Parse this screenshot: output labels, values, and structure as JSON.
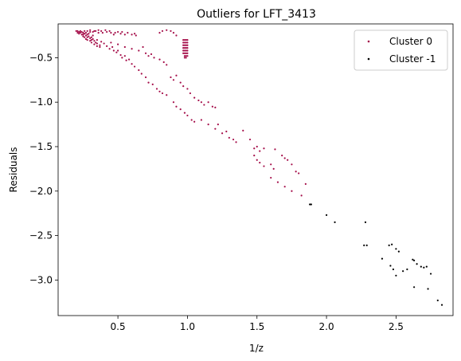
{
  "chart_data": {
    "type": "scatter",
    "title": "Outliers for LFT_3413",
    "xlabel": "1/z",
    "ylabel": "Residuals",
    "xlim": [
      0.07,
      2.91
    ],
    "ylim": [
      -3.4,
      -0.12
    ],
    "xticks": [
      0.5,
      1.0,
      1.5,
      2.0,
      2.5
    ],
    "xtick_labels": [
      "0.5",
      "1.0",
      "1.5",
      "2.0",
      "2.5"
    ],
    "yticks": [
      -0.5,
      -1.0,
      -1.5,
      -2.0,
      -2.5,
      -3.0
    ],
    "ytick_labels": [
      "−0.5",
      "−1.0",
      "−1.5",
      "−2.0",
      "−2.5",
      "−3.0"
    ],
    "grid": false,
    "legend": "top-right",
    "series": [
      {
        "name": "Cluster 0",
        "color": "#a50f4a",
        "points": [
          [
            0.2,
            -0.2
          ],
          [
            0.21,
            -0.2
          ],
          [
            0.22,
            -0.21
          ],
          [
            0.23,
            -0.2
          ],
          [
            0.23,
            -0.22
          ],
          [
            0.24,
            -0.21
          ],
          [
            0.25,
            -0.22
          ],
          [
            0.25,
            -0.24
          ],
          [
            0.26,
            -0.23
          ],
          [
            0.26,
            -0.2
          ],
          [
            0.27,
            -0.25
          ],
          [
            0.27,
            -0.22
          ],
          [
            0.28,
            -0.24
          ],
          [
            0.28,
            -0.27
          ],
          [
            0.29,
            -0.26
          ],
          [
            0.29,
            -0.23
          ],
          [
            0.3,
            -0.28
          ],
          [
            0.3,
            -0.21
          ],
          [
            0.31,
            -0.27
          ],
          [
            0.31,
            -0.3
          ],
          [
            0.32,
            -0.29
          ],
          [
            0.32,
            -0.25
          ],
          [
            0.33,
            -0.31
          ],
          [
            0.33,
            -0.2
          ],
          [
            0.34,
            -0.33
          ],
          [
            0.35,
            -0.3
          ],
          [
            0.35,
            -0.34
          ],
          [
            0.36,
            -0.22
          ],
          [
            0.37,
            -0.36
          ],
          [
            0.38,
            -0.32
          ],
          [
            0.21,
            -0.22
          ],
          [
            0.22,
            -0.23
          ],
          [
            0.24,
            -0.24
          ],
          [
            0.25,
            -0.26
          ],
          [
            0.26,
            -0.27
          ],
          [
            0.27,
            -0.29
          ],
          [
            0.28,
            -0.3
          ],
          [
            0.3,
            -0.31
          ],
          [
            0.31,
            -0.33
          ],
          [
            0.33,
            -0.35
          ],
          [
            0.35,
            -0.37
          ],
          [
            0.37,
            -0.38
          ],
          [
            0.28,
            -0.2
          ],
          [
            0.3,
            -0.19
          ],
          [
            0.32,
            -0.21
          ],
          [
            0.34,
            -0.2
          ],
          [
            0.36,
            -0.19
          ],
          [
            0.38,
            -0.2
          ],
          [
            0.39,
            -0.22
          ],
          [
            0.41,
            -0.19
          ],
          [
            0.42,
            -0.21
          ],
          [
            0.44,
            -0.2
          ],
          [
            0.45,
            -0.22
          ],
          [
            0.47,
            -0.24
          ],
          [
            0.48,
            -0.22
          ],
          [
            0.5,
            -0.21
          ],
          [
            0.52,
            -0.23
          ],
          [
            0.53,
            -0.21
          ],
          [
            0.55,
            -0.24
          ],
          [
            0.57,
            -0.22
          ],
          [
            0.6,
            -0.24
          ],
          [
            0.62,
            -0.23
          ],
          [
            0.63,
            -0.25
          ],
          [
            0.4,
            -0.34
          ],
          [
            0.42,
            -0.37
          ],
          [
            0.44,
            -0.4
          ],
          [
            0.46,
            -0.38
          ],
          [
            0.47,
            -0.42
          ],
          [
            0.49,
            -0.44
          ],
          [
            0.5,
            -0.42
          ],
          [
            0.52,
            -0.47
          ],
          [
            0.53,
            -0.5
          ],
          [
            0.55,
            -0.48
          ],
          [
            0.56,
            -0.53
          ],
          [
            0.58,
            -0.52
          ],
          [
            0.6,
            -0.57
          ],
          [
            0.62,
            -0.6
          ],
          [
            0.65,
            -0.64
          ],
          [
            0.67,
            -0.68
          ],
          [
            0.45,
            -0.33
          ],
          [
            0.5,
            -0.35
          ],
          [
            0.55,
            -0.38
          ],
          [
            0.6,
            -0.4
          ],
          [
            0.65,
            -0.42
          ],
          [
            0.68,
            -0.38
          ],
          [
            0.7,
            -0.45
          ],
          [
            0.72,
            -0.48
          ],
          [
            0.74,
            -0.46
          ],
          [
            0.76,
            -0.5
          ],
          [
            0.8,
            -0.52
          ],
          [
            0.83,
            -0.55
          ],
          [
            0.85,
            -0.58
          ],
          [
            0.7,
            -0.72
          ],
          [
            0.72,
            -0.78
          ],
          [
            0.75,
            -0.8
          ],
          [
            0.78,
            -0.85
          ],
          [
            0.8,
            -0.88
          ],
          [
            0.82,
            -0.9
          ],
          [
            0.85,
            -0.92
          ],
          [
            0.88,
            -0.72
          ],
          [
            0.9,
            -0.75
          ],
          [
            0.92,
            -0.7
          ],
          [
            0.95,
            -0.78
          ],
          [
            0.97,
            -0.82
          ],
          [
            1.0,
            -0.85
          ],
          [
            1.02,
            -0.9
          ],
          [
            1.05,
            -0.95
          ],
          [
            1.08,
            -0.98
          ],
          [
            1.1,
            -1.0
          ],
          [
            1.12,
            -1.03
          ],
          [
            1.15,
            -1.0
          ],
          [
            1.18,
            -1.05
          ],
          [
            1.2,
            -1.06
          ],
          [
            0.9,
            -1.0
          ],
          [
            0.92,
            -1.05
          ],
          [
            0.95,
            -1.08
          ],
          [
            0.98,
            -1.12
          ],
          [
            1.0,
            -1.15
          ],
          [
            1.03,
            -1.2
          ],
          [
            1.05,
            -1.22
          ],
          [
            0.8,
            -0.22
          ],
          [
            0.82,
            -0.2
          ],
          [
            0.85,
            -0.19
          ],
          [
            0.88,
            -0.2
          ],
          [
            0.9,
            -0.22
          ],
          [
            0.92,
            -0.25
          ],
          [
            0.97,
            -0.3
          ],
          [
            0.98,
            -0.3
          ],
          [
            0.99,
            -0.3
          ],
          [
            1.0,
            -0.3
          ],
          [
            0.97,
            -0.33
          ],
          [
            0.98,
            -0.33
          ],
          [
            0.99,
            -0.33
          ],
          [
            1.0,
            -0.33
          ],
          [
            0.97,
            -0.36
          ],
          [
            0.98,
            -0.36
          ],
          [
            0.99,
            -0.36
          ],
          [
            1.0,
            -0.36
          ],
          [
            0.97,
            -0.39
          ],
          [
            0.98,
            -0.39
          ],
          [
            0.99,
            -0.39
          ],
          [
            1.0,
            -0.39
          ],
          [
            0.97,
            -0.42
          ],
          [
            0.98,
            -0.42
          ],
          [
            0.99,
            -0.42
          ],
          [
            1.0,
            -0.42
          ],
          [
            0.97,
            -0.45
          ],
          [
            0.98,
            -0.45
          ],
          [
            0.99,
            -0.45
          ],
          [
            1.0,
            -0.45
          ],
          [
            0.98,
            -0.48
          ],
          [
            0.99,
            -0.48
          ],
          [
            1.0,
            -0.48
          ],
          [
            0.98,
            -0.5
          ],
          [
            0.99,
            -0.5
          ],
          [
            1.1,
            -1.2
          ],
          [
            1.15,
            -1.25
          ],
          [
            1.2,
            -1.3
          ],
          [
            1.25,
            -1.35
          ],
          [
            1.3,
            -1.4
          ],
          [
            1.35,
            -1.45
          ],
          [
            1.22,
            -1.25
          ],
          [
            1.28,
            -1.33
          ],
          [
            1.33,
            -1.42
          ],
          [
            1.4,
            -1.32
          ],
          [
            1.45,
            -1.42
          ],
          [
            1.48,
            -1.52
          ],
          [
            1.5,
            -1.5
          ],
          [
            1.52,
            -1.55
          ],
          [
            1.55,
            -1.52
          ],
          [
            1.48,
            -1.6
          ],
          [
            1.5,
            -1.65
          ],
          [
            1.52,
            -1.68
          ],
          [
            1.55,
            -1.72
          ],
          [
            1.6,
            -1.7
          ],
          [
            1.62,
            -1.75
          ],
          [
            1.63,
            -1.53
          ],
          [
            1.68,
            -1.6
          ],
          [
            1.7,
            -1.63
          ],
          [
            1.72,
            -1.65
          ],
          [
            1.75,
            -1.7
          ],
          [
            1.78,
            -1.78
          ],
          [
            1.8,
            -1.8
          ],
          [
            1.6,
            -1.85
          ],
          [
            1.65,
            -1.9
          ],
          [
            1.7,
            -1.95
          ],
          [
            1.75,
            -2.0
          ],
          [
            1.85,
            -1.92
          ],
          [
            1.82,
            -2.05
          ]
        ]
      },
      {
        "name": "Cluster -1",
        "color": "#000000",
        "points": [
          [
            1.88,
            -2.15
          ],
          [
            1.89,
            -2.15
          ],
          [
            2.0,
            -2.27
          ],
          [
            2.06,
            -2.35
          ],
          [
            2.27,
            -2.61
          ],
          [
            2.29,
            -2.61
          ],
          [
            2.28,
            -2.35
          ],
          [
            2.4,
            -2.76
          ],
          [
            2.45,
            -2.61
          ],
          [
            2.47,
            -2.6
          ],
          [
            2.5,
            -2.65
          ],
          [
            2.52,
            -2.68
          ],
          [
            2.46,
            -2.84
          ],
          [
            2.48,
            -2.88
          ],
          [
            2.5,
            -2.95
          ],
          [
            2.55,
            -2.9
          ],
          [
            2.58,
            -2.88
          ],
          [
            2.62,
            -2.77
          ],
          [
            2.63,
            -2.78
          ],
          [
            2.65,
            -2.82
          ],
          [
            2.68,
            -2.85
          ],
          [
            2.7,
            -2.86
          ],
          [
            2.72,
            -2.85
          ],
          [
            2.63,
            -3.08
          ],
          [
            2.73,
            -3.1
          ],
          [
            2.75,
            -2.93
          ],
          [
            2.8,
            -3.23
          ],
          [
            2.83,
            -3.28
          ]
        ]
      }
    ]
  }
}
